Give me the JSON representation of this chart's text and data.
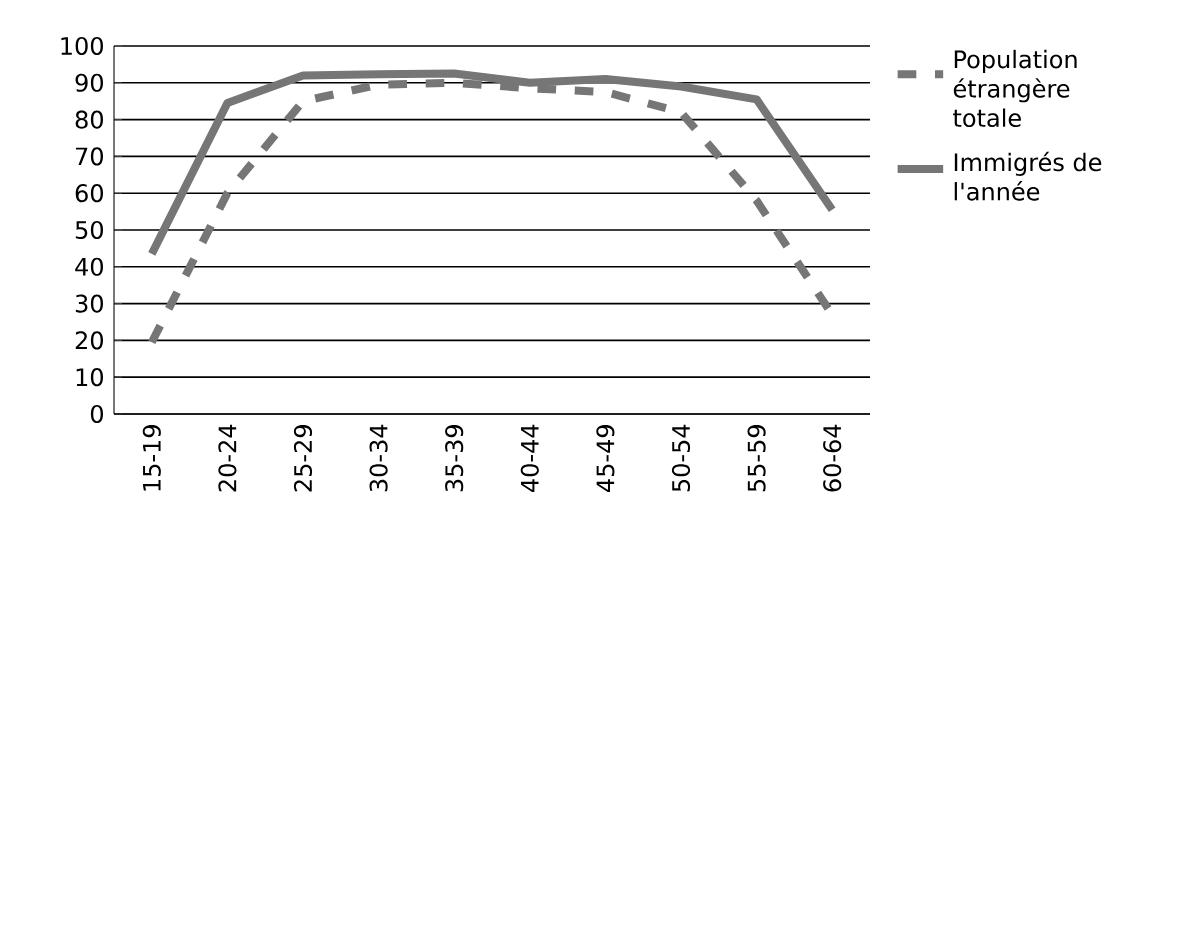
{
  "chart_data": {
    "type": "line",
    "categories": [
      "15-19",
      "20-24",
      "25-29",
      "30-34",
      "35-39",
      "40-44",
      "45-49",
      "50-54",
      "55-59",
      "60-64"
    ],
    "series": [
      {
        "name": "Population étrangère totale",
        "color": "#767676",
        "line_style": "dashed",
        "values": [
          19.5,
          60,
          85,
          89.5,
          90,
          88.5,
          87.5,
          82,
          58,
          27
        ]
      },
      {
        "name": "Immigrés de l'année",
        "color": "#767676",
        "line_style": "solid",
        "values": [
          43.5,
          84.5,
          92,
          92.3,
          92.5,
          90,
          91,
          89,
          85.5,
          55.5
        ]
      }
    ],
    "ylim": [
      0,
      100
    ],
    "yticks": [
      0,
      10,
      20,
      30,
      40,
      50,
      60,
      70,
      80,
      90,
      100
    ],
    "grid": "y",
    "legend": "top right",
    "marker": "none"
  }
}
